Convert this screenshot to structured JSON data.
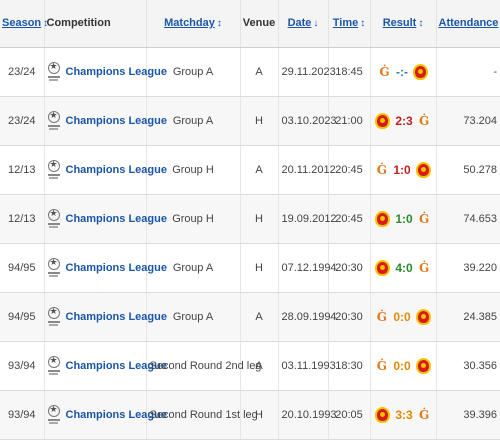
{
  "headers": {
    "season": "Season",
    "competition": "Competition",
    "matchday": "Matchday",
    "venue": "Venue",
    "date": "Date",
    "time": "Time",
    "result": "Result",
    "attendance": "Attendance"
  },
  "sort_icons": {
    "season": "↕",
    "matchday": "↕",
    "date": "↓",
    "time": "↕",
    "result": "↕",
    "attendance": "↕"
  },
  "colors": {
    "link": "#1a56a8",
    "win": "#2c8a2c",
    "loss": "#c02020",
    "draw": "#e08a00"
  },
  "rows": [
    {
      "season": "23/24",
      "competition": "Champions League",
      "matchday": "Group A",
      "venue": "A",
      "date": "29.11.2023",
      "time": "18:45",
      "left_crest": "galatasaray-crest-icon",
      "score": "-:-",
      "right_crest": "manchester-united-crest-icon",
      "outcome": "pending",
      "attendance": "-"
    },
    {
      "season": "23/24",
      "competition": "Champions League",
      "matchday": "Group A",
      "venue": "H",
      "date": "03.10.2023",
      "time": "21:00",
      "left_crest": "manchester-united-crest-icon",
      "score": "2:3",
      "right_crest": "galatasaray-crest-icon",
      "outcome": "loss",
      "attendance": "73.204"
    },
    {
      "season": "12/13",
      "competition": "Champions League",
      "matchday": "Group H",
      "venue": "A",
      "date": "20.11.2012",
      "time": "20:45",
      "left_crest": "galatasaray-crest-icon",
      "score": "1:0",
      "right_crest": "manchester-united-crest-icon",
      "outcome": "loss",
      "attendance": "50.278"
    },
    {
      "season": "12/13",
      "competition": "Champions League",
      "matchday": "Group H",
      "venue": "H",
      "date": "19.09.2012",
      "time": "20:45",
      "left_crest": "manchester-united-crest-icon",
      "score": "1:0",
      "right_crest": "galatasaray-crest-icon",
      "outcome": "win",
      "attendance": "74.653"
    },
    {
      "season": "94/95",
      "competition": "Champions League",
      "matchday": "Group A",
      "venue": "H",
      "date": "07.12.1994",
      "time": "20:30",
      "left_crest": "manchester-united-crest-icon",
      "score": "4:0",
      "right_crest": "galatasaray-crest-icon",
      "outcome": "win",
      "attendance": "39.220"
    },
    {
      "season": "94/95",
      "competition": "Champions League",
      "matchday": "Group A",
      "venue": "A",
      "date": "28.09.1994",
      "time": "20:30",
      "left_crest": "galatasaray-crest-icon",
      "score": "0:0",
      "right_crest": "manchester-united-crest-icon",
      "outcome": "draw",
      "attendance": "24.385"
    },
    {
      "season": "93/94",
      "competition": "Champions League",
      "matchday": "Second Round 2nd leg",
      "venue": "A",
      "date": "03.11.1993",
      "time": "18:30",
      "left_crest": "galatasaray-crest-icon",
      "score": "0:0",
      "right_crest": "manchester-united-crest-icon",
      "outcome": "draw",
      "attendance": "30.356"
    },
    {
      "season": "93/94",
      "competition": "Champions League",
      "matchday": "Second Round 1st leg",
      "venue": "H",
      "date": "20.10.1993",
      "time": "20:05",
      "left_crest": "manchester-united-crest-icon",
      "score": "3:3",
      "right_crest": "galatasaray-crest-icon",
      "outcome": "draw",
      "attendance": "39.396"
    }
  ]
}
